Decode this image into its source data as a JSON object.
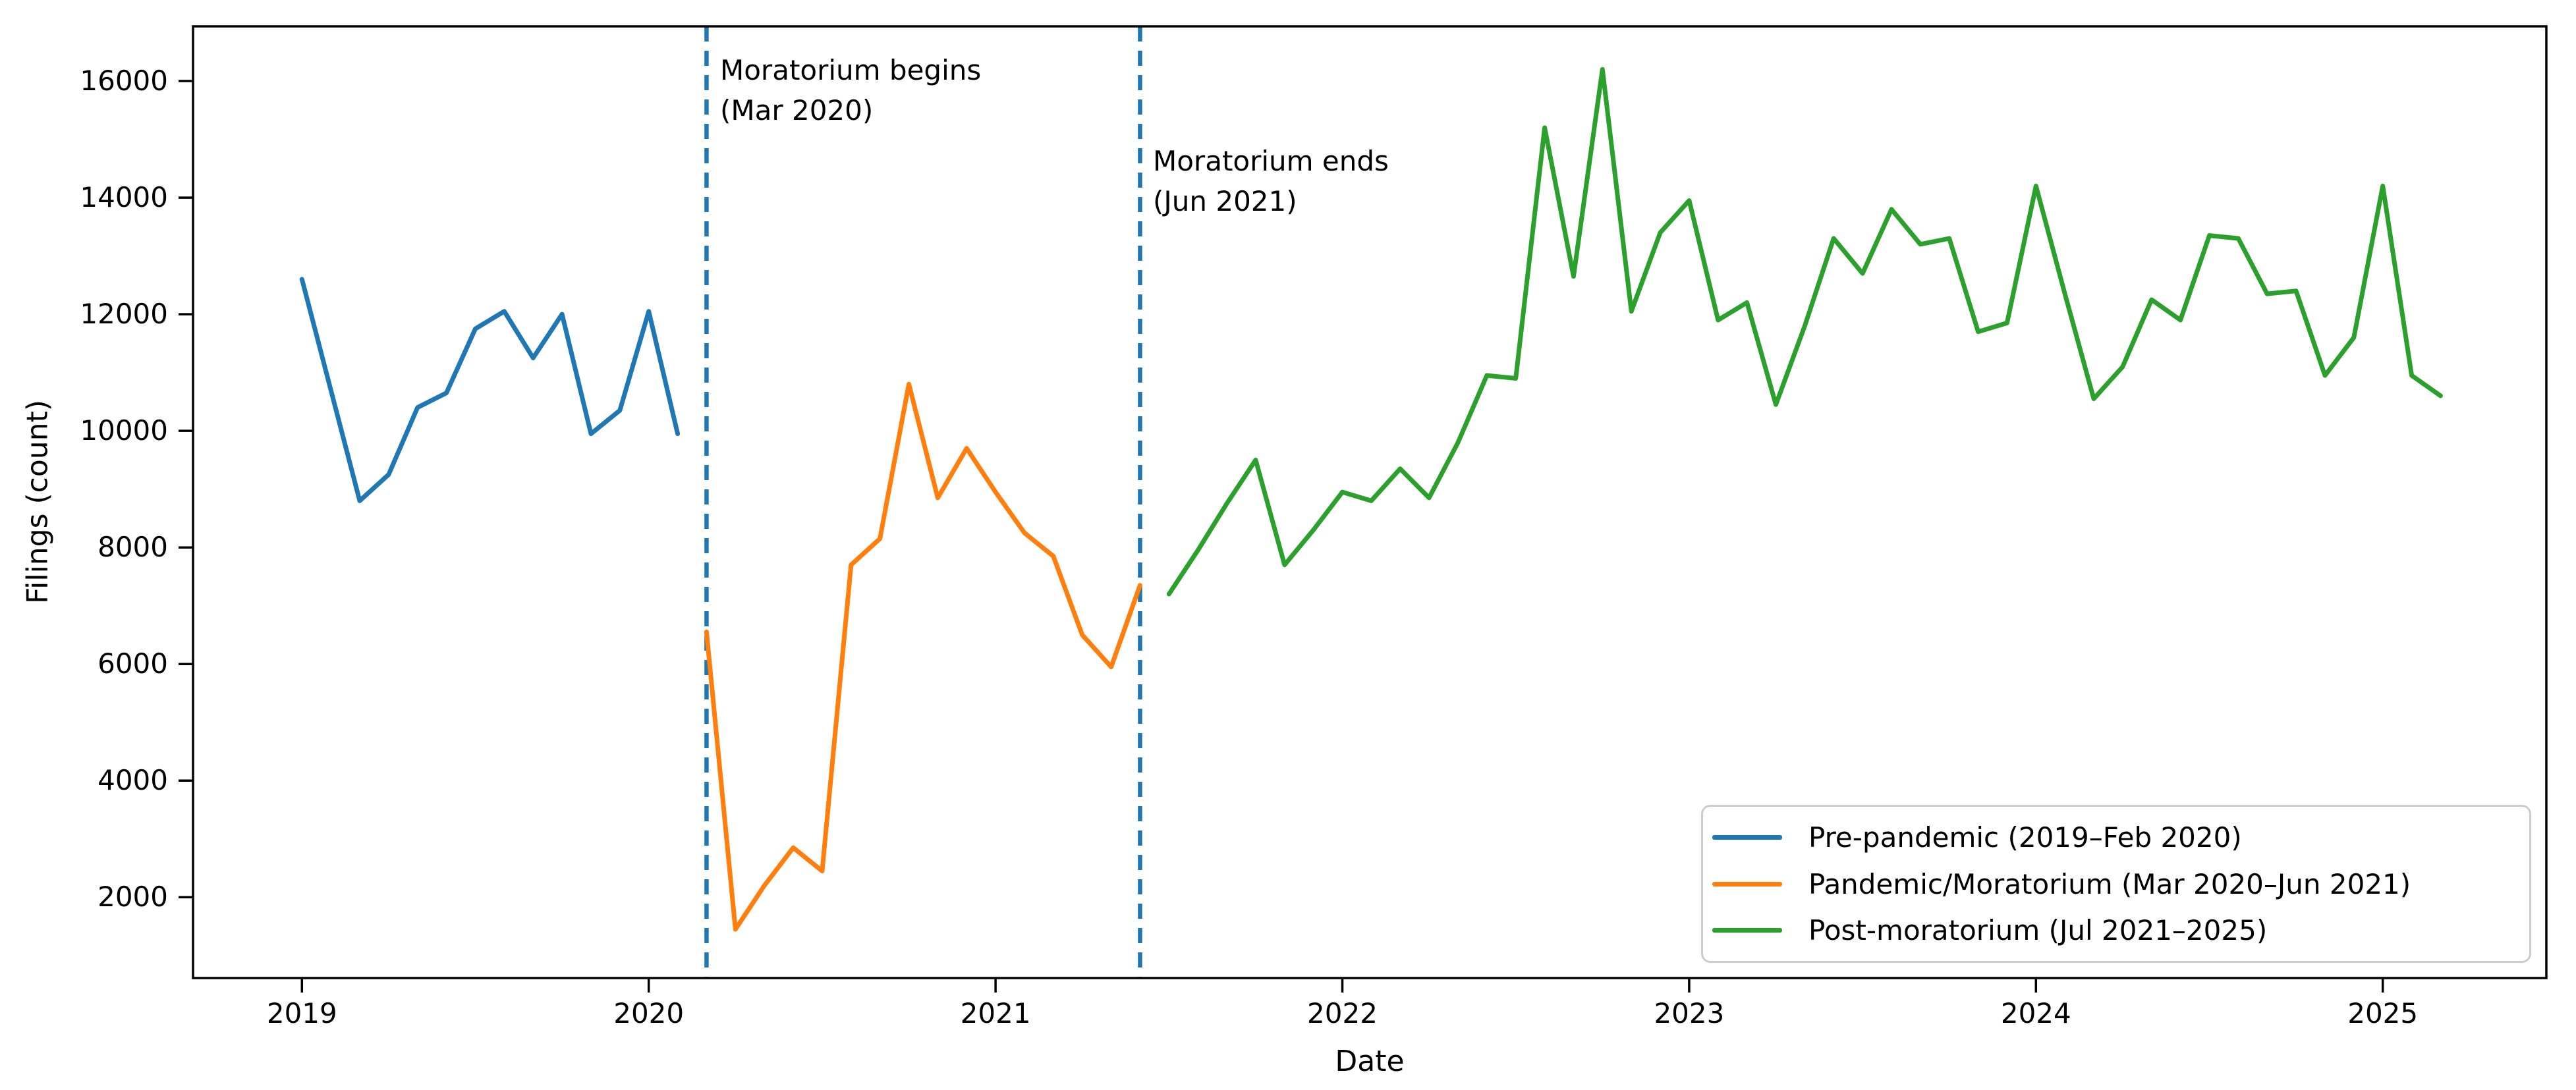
{
  "axis": {
    "xlabel": "Date",
    "ylabel": "Filings (count)"
  },
  "chart_data": {
    "type": "line",
    "title": "",
    "xlabel": "Date",
    "ylabel": "Filings (count)",
    "grid": false,
    "legend_position": "lower right",
    "x_unit": "month (index 0 = Jan 2019)",
    "x_ticks": [
      {
        "label": "2019",
        "month": 0
      },
      {
        "label": "2020",
        "month": 12
      },
      {
        "label": "2021",
        "month": 24
      },
      {
        "label": "2022",
        "month": 36
      },
      {
        "label": "2023",
        "month": 48
      },
      {
        "label": "2024",
        "month": 60
      },
      {
        "label": "2025",
        "month": 72
      }
    ],
    "y_ticks": [
      2000,
      4000,
      6000,
      8000,
      10000,
      12000,
      14000,
      16000
    ],
    "ylim": [
      600,
      16950
    ],
    "xlim_months": [
      -3.77,
      77.66
    ],
    "series": [
      {
        "name": "Pre-pandemic (2019–Feb 2020)",
        "color": "#1f77b4",
        "start": "Jan 2019",
        "start_month": 0,
        "values": [
          12600,
          10700,
          8800,
          9250,
          10400,
          10650,
          11750,
          12050,
          11250,
          12000,
          9950,
          10350,
          12050,
          9950
        ]
      },
      {
        "name": "Pandemic/Moratorium (Mar 2020–Jun 2021)",
        "color": "#ff7f0e",
        "start": "Mar 2020",
        "start_month": 14,
        "values": [
          6550,
          1450,
          2200,
          2850,
          2450,
          7700,
          8150,
          10800,
          8850,
          9700,
          8950,
          8250,
          7850,
          6500,
          5950,
          7350
        ]
      },
      {
        "name": "Post-moratorium (Jul 2021–2025)",
        "color": "#2ca02c",
        "start": "Jul 2021",
        "start_month": 30,
        "values": [
          7200,
          7950,
          8750,
          9500,
          7700,
          8300,
          8950,
          8800,
          9350,
          8850,
          9800,
          10950,
          10900,
          15200,
          12650,
          16200,
          12050,
          13400,
          13950,
          11900,
          12200,
          10450,
          11800,
          13300,
          12700,
          13800,
          13200,
          13300,
          11700,
          11850,
          14200,
          12350,
          10550,
          11100,
          12250,
          11900,
          13350,
          13300,
          12350,
          12400,
          10950,
          11600,
          14200,
          10950,
          10600
        ]
      }
    ],
    "vlines": [
      {
        "month": 14,
        "color": "#1f77b4",
        "style": "dashed",
        "label_lines": [
          "Moratorium begins",
          "(Mar 2020)"
        ]
      },
      {
        "month": 29,
        "color": "#1f77b4",
        "style": "dashed",
        "label_lines": [
          "Moratorium ends",
          "(Jun 2021)"
        ]
      }
    ]
  }
}
